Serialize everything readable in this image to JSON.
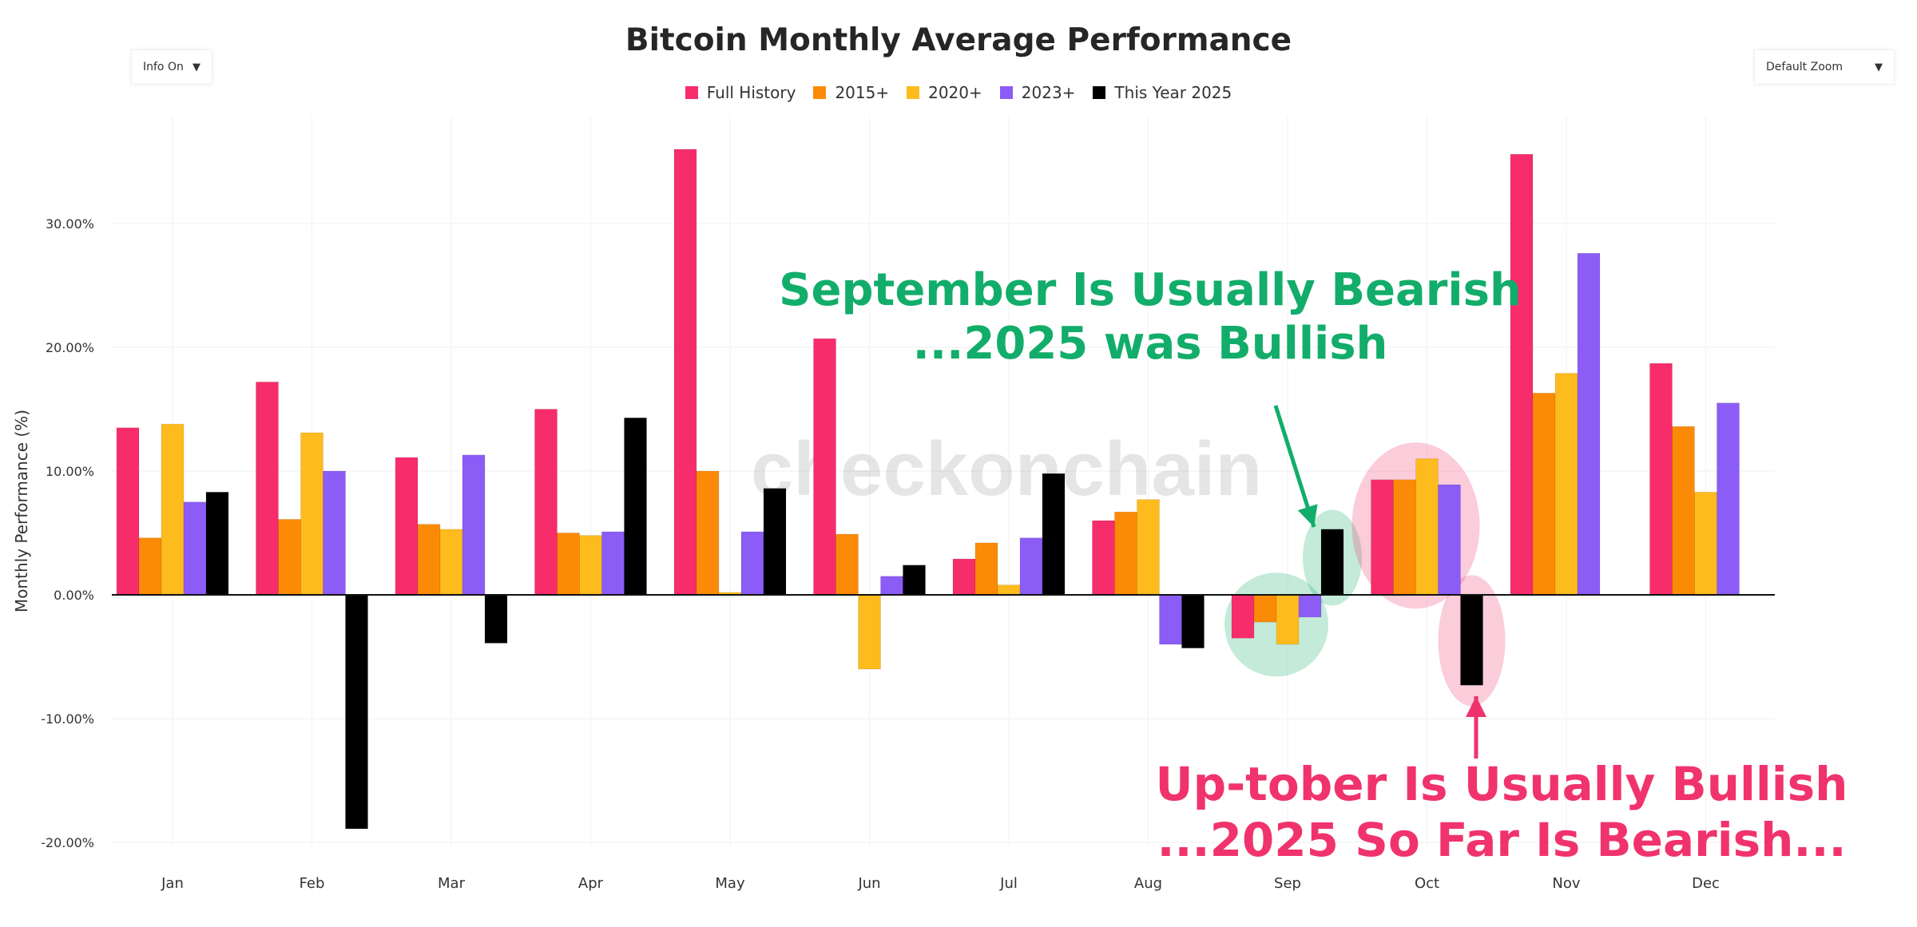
{
  "title": "Bitcoin Monthly Average Performance",
  "controls": {
    "info_label": "Info On",
    "zoom_label": "Default Zoom",
    "caret": "▼"
  },
  "colors": {
    "full_history": "#f72d6b",
    "since_2015": "#fb8b06",
    "since_2020": "#fdbb1e",
    "since_2023": "#8b5cf6",
    "this_year": "#000000",
    "annotation_green": "#12ad6a",
    "annotation_pink": "#f0336c"
  },
  "watermark": "checkonchain",
  "annotations": {
    "september": [
      "September Is Usually Bearish",
      "...2025 was Bullish"
    ],
    "october": [
      "Up-tober Is Usually Bullish",
      "...2025 So Far Is Bearish..."
    ]
  },
  "chart_data": {
    "type": "bar",
    "title": "Bitcoin Monthly Average Performance",
    "xlabel": "",
    "ylabel": "Monthly Performance (%)",
    "ylim": [
      -20,
      38
    ],
    "yticks": [
      -20,
      -10,
      0,
      10,
      20,
      30
    ],
    "ytick_labels": [
      "-20.00%",
      "-10.00%",
      "0.00%",
      "10.00%",
      "20.00%",
      "30.00%"
    ],
    "grid": true,
    "legend_position": "top-center",
    "categories": [
      "Jan",
      "Feb",
      "Mar",
      "Apr",
      "May",
      "Jun",
      "Jul",
      "Aug",
      "Sep",
      "Oct",
      "Nov",
      "Dec"
    ],
    "series": [
      {
        "name": "Full History",
        "color": "#f72d6b",
        "values": [
          13.5,
          17.2,
          11.1,
          15.0,
          36.0,
          20.7,
          2.9,
          6.0,
          -3.5,
          9.3,
          35.6,
          18.7
        ]
      },
      {
        "name": "2015+",
        "color": "#fb8b06",
        "values": [
          4.6,
          6.1,
          5.7,
          5.0,
          10.0,
          4.9,
          4.2,
          6.7,
          -2.2,
          9.3,
          16.3,
          13.6
        ]
      },
      {
        "name": "2020+",
        "color": "#fdbb1e",
        "values": [
          13.8,
          13.1,
          5.3,
          4.8,
          0.2,
          -6.0,
          0.8,
          7.7,
          -4.0,
          11.0,
          17.9,
          8.3
        ]
      },
      {
        "name": "2023+",
        "color": "#8b5cf6",
        "values": [
          7.5,
          10.0,
          11.3,
          5.1,
          5.1,
          1.5,
          4.6,
          -4.0,
          -1.8,
          8.9,
          27.6,
          15.5
        ]
      },
      {
        "name": "This Year 2025",
        "color": "#000000",
        "values": [
          8.3,
          -18.9,
          -3.9,
          14.3,
          8.6,
          2.4,
          9.8,
          -4.3,
          5.3,
          -7.3,
          null,
          null
        ]
      }
    ]
  }
}
